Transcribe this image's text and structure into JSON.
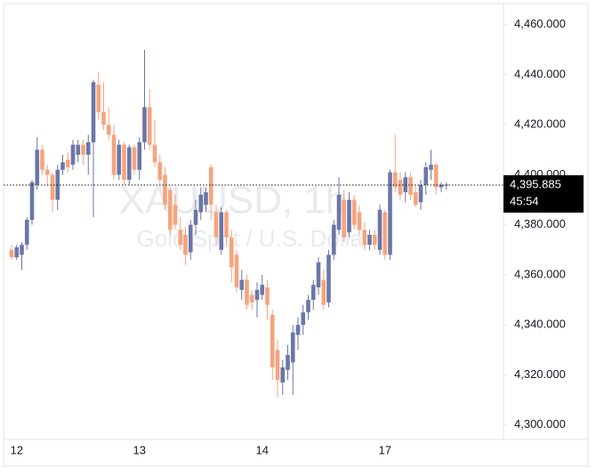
{
  "chart_data": {
    "type": "candlestick",
    "watermark_title": "XAUUSD, 1h",
    "watermark_subtitle": "Gold Spot / U.S. Dollar",
    "categories": [
      null,
      "12",
      null,
      null,
      null,
      null,
      null,
      null,
      null,
      null,
      null,
      null,
      null,
      null,
      null,
      null,
      null,
      null,
      null,
      null,
      null,
      null,
      null,
      null,
      null,
      "13",
      null,
      null,
      null,
      null,
      null,
      null,
      null,
      null,
      null,
      null,
      null,
      null,
      null,
      null,
      null,
      null,
      null,
      null,
      null,
      null,
      null,
      null,
      null,
      "14",
      null,
      null,
      null,
      null,
      null,
      null,
      null,
      null,
      null,
      null,
      null,
      null,
      null,
      null,
      null,
      null,
      null,
      null,
      null,
      null,
      null,
      null,
      null,
      "17",
      null,
      null,
      null,
      null,
      null,
      null,
      null,
      null,
      null,
      null,
      null,
      null
    ],
    "open": [
      4370,
      4367,
      4368,
      4372,
      4382,
      4396,
      4410,
      4402,
      4400,
      4390,
      4402,
      4406,
      4404,
      4408,
      4412,
      4408,
      4413,
      4436,
      4425,
      4420,
      4416,
      4400,
      4412,
      4398,
      4411,
      4402,
      4413,
      4427,
      4412,
      4405,
      4400,
      4394,
      4388,
      4378,
      4376,
      4369,
      4380,
      4385,
      4388,
      4403,
      4385,
      4370,
      4385,
      4375,
      4368,
      4354,
      4358,
      4352,
      4350,
      4352,
      4355,
      4344,
      4330,
      4317,
      4322,
      4325,
      4336,
      4340,
      4345,
      4350,
      4355,
      4358,
      4349,
      4368,
      4378,
      4390,
      4377,
      4390,
      4385,
      4378,
      4372,
      4376,
      4370,
      4385,
      4368,
      4401,
      4398,
      4393,
      4399,
      4393,
      4389,
      4396,
      4402,
      4404,
      4395,
      4396
    ],
    "high": [
      4372,
      4372,
      4373,
      4383,
      4398,
      4415,
      4412,
      4404,
      4401,
      4404,
      4408,
      4409,
      4414,
      4414,
      4414,
      4416,
      4438,
      4441,
      4437,
      4427,
      4420,
      4414,
      4413,
      4412,
      4412,
      4415,
      4450,
      4434,
      4422,
      4408,
      4403,
      4396,
      4392,
      4383,
      4379,
      4382,
      4390,
      4395,
      4395,
      4404,
      4388,
      4387,
      4386,
      4378,
      4370,
      4362,
      4360,
      4354,
      4357,
      4360,
      4358,
      4346,
      4334,
      4326,
      4332,
      4340,
      4343,
      4348,
      4352,
      4358,
      4367,
      4362,
      4370,
      4382,
      4399,
      4394,
      4393,
      4392,
      4388,
      4381,
      4378,
      4378,
      4388,
      4386,
      4402,
      4416,
      4401,
      4401,
      4401,
      4396,
      4398,
      4405,
      4410,
      4405,
      4397,
      4397
    ],
    "low": [
      4366,
      4366,
      4362,
      4370,
      4380,
      4394,
      4400,
      4396,
      4385,
      4386,
      4400,
      4401,
      4402,
      4405,
      4404,
      4400,
      4383,
      4422,
      4418,
      4414,
      4398,
      4398,
      4396,
      4396,
      4400,
      4398,
      4410,
      4410,
      4403,
      4396,
      4386,
      4376,
      4378,
      4370,
      4364,
      4366,
      4376,
      4382,
      4385,
      4382,
      4372,
      4368,
      4372,
      4357,
      4353,
      4350,
      4346,
      4346,
      4343,
      4350,
      4342,
      4318,
      4311,
      4312,
      4318,
      4312,
      4330,
      4336,
      4342,
      4346,
      4352,
      4346,
      4347,
      4366,
      4376,
      4373,
      4375,
      4378,
      4376,
      4370,
      4370,
      4370,
      4368,
      4366,
      4366,
      4393,
      4390,
      4389,
      4390,
      4387,
      4386,
      4392,
      4398,
      4392,
      4393,
      4394
    ],
    "close": [
      4367,
      4371,
      4372,
      4382,
      4397,
      4410,
      4402,
      4400,
      4390,
      4402,
      4405,
      4403,
      4412,
      4412,
      4408,
      4413,
      4437,
      4425,
      4420,
      4416,
      4400,
      4412,
      4398,
      4411,
      4402,
      4413,
      4427,
      4412,
      4405,
      4398,
      4388,
      4378,
      4380,
      4372,
      4368,
      4380,
      4386,
      4392,
      4393,
      4388,
      4375,
      4385,
      4375,
      4363,
      4355,
      4358,
      4348,
      4349,
      4354,
      4356,
      4348,
      4323,
      4318,
      4323,
      4328,
      4337,
      4340,
      4345,
      4350,
      4356,
      4365,
      4348,
      4368,
      4380,
      4392,
      4375,
      4390,
      4380,
      4378,
      4372,
      4376,
      4372,
      4386,
      4368,
      4401,
      4395,
      4392,
      4399,
      4392,
      4388,
      4396,
      4403,
      4404,
      4395,
      4396,
      4396
    ],
    "up_color": "#6b76a8",
    "down_color": "#f5a47e",
    "ylim": [
      4296,
      4467
    ],
    "yticks": [
      {
        "value": 4300,
        "label": "4,300.000"
      },
      {
        "value": 4320,
        "label": "4,320.000"
      },
      {
        "value": 4340,
        "label": "4,340.000"
      },
      {
        "value": 4360,
        "label": "4,360.000"
      },
      {
        "value": 4380,
        "label": "4,380.000"
      },
      {
        "value": 4400,
        "label": "4,400.000"
      },
      {
        "value": 4420,
        "label": "4,420.000"
      },
      {
        "value": 4440,
        "label": "4,440.000"
      },
      {
        "value": 4460,
        "label": "4,460.000"
      }
    ],
    "last_price": {
      "value": 4395.885,
      "label": "4,395.885"
    },
    "countdown": "45:54"
  }
}
